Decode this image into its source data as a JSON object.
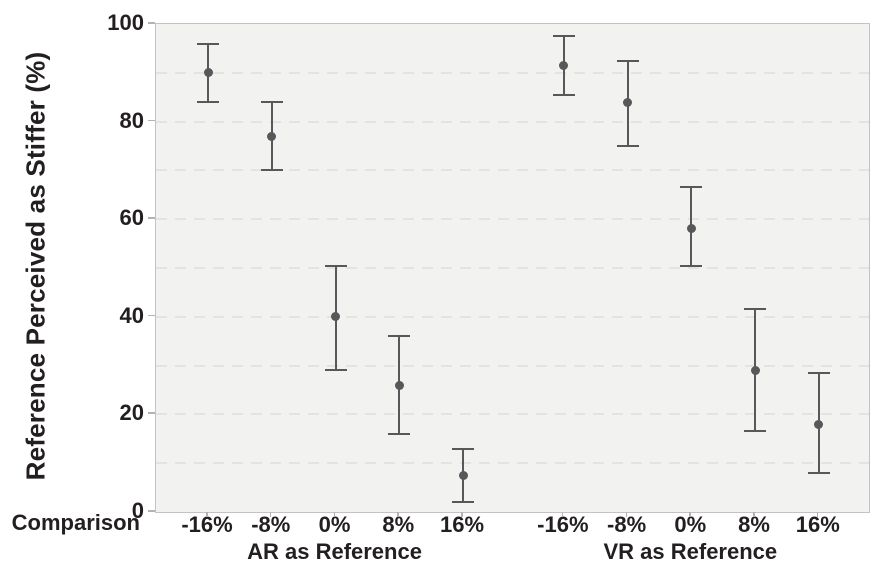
{
  "chart_data": {
    "type": "scatter",
    "subtype": "point-with-error-bars",
    "title": "",
    "ylabel": "Reference Perceived as Stiffer (%)",
    "xlabel": "Comparison",
    "ylim": [
      0,
      100
    ],
    "ytick_step": 20,
    "ytick_labels": [
      "0",
      "20",
      "40",
      "60",
      "80",
      "100"
    ],
    "grid_step": 10,
    "grid": "horizontal-dashed",
    "legend": "none",
    "categories": [
      "-16%",
      "-8%",
      "0%",
      "8%",
      "16%"
    ],
    "groups": [
      {
        "label": "AR as Reference",
        "points": [
          {
            "category": "-16%",
            "mean": 90,
            "ci_low": 84,
            "ci_high": 96
          },
          {
            "category": "-8%",
            "mean": 77,
            "ci_low": 70,
            "ci_high": 84
          },
          {
            "category": "0%",
            "mean": 40,
            "ci_low": 29,
            "ci_high": 50.5
          },
          {
            "category": "8%",
            "mean": 26,
            "ci_low": 16,
            "ci_high": 36
          },
          {
            "category": "16%",
            "mean": 7.5,
            "ci_low": 2,
            "ci_high": 13
          }
        ]
      },
      {
        "label": "VR as Reference",
        "points": [
          {
            "category": "-16%",
            "mean": 91.5,
            "ci_low": 85.5,
            "ci_high": 97.5
          },
          {
            "category": "-8%",
            "mean": 84,
            "ci_low": 75,
            "ci_high": 92.5
          },
          {
            "category": "0%",
            "mean": 58,
            "ci_low": 50.5,
            "ci_high": 66.5
          },
          {
            "category": "8%",
            "mean": 29,
            "ci_low": 16.5,
            "ci_high": 41.5
          },
          {
            "category": "16%",
            "mean": 18,
            "ci_low": 8,
            "ci_high": 28.5
          }
        ]
      }
    ],
    "colors": {
      "marker": "#58585a",
      "plot_background": "#f2f2f0",
      "gridline": "#e3e3e1",
      "axis_line": "#c3c3c1",
      "text": "#231f20"
    }
  }
}
